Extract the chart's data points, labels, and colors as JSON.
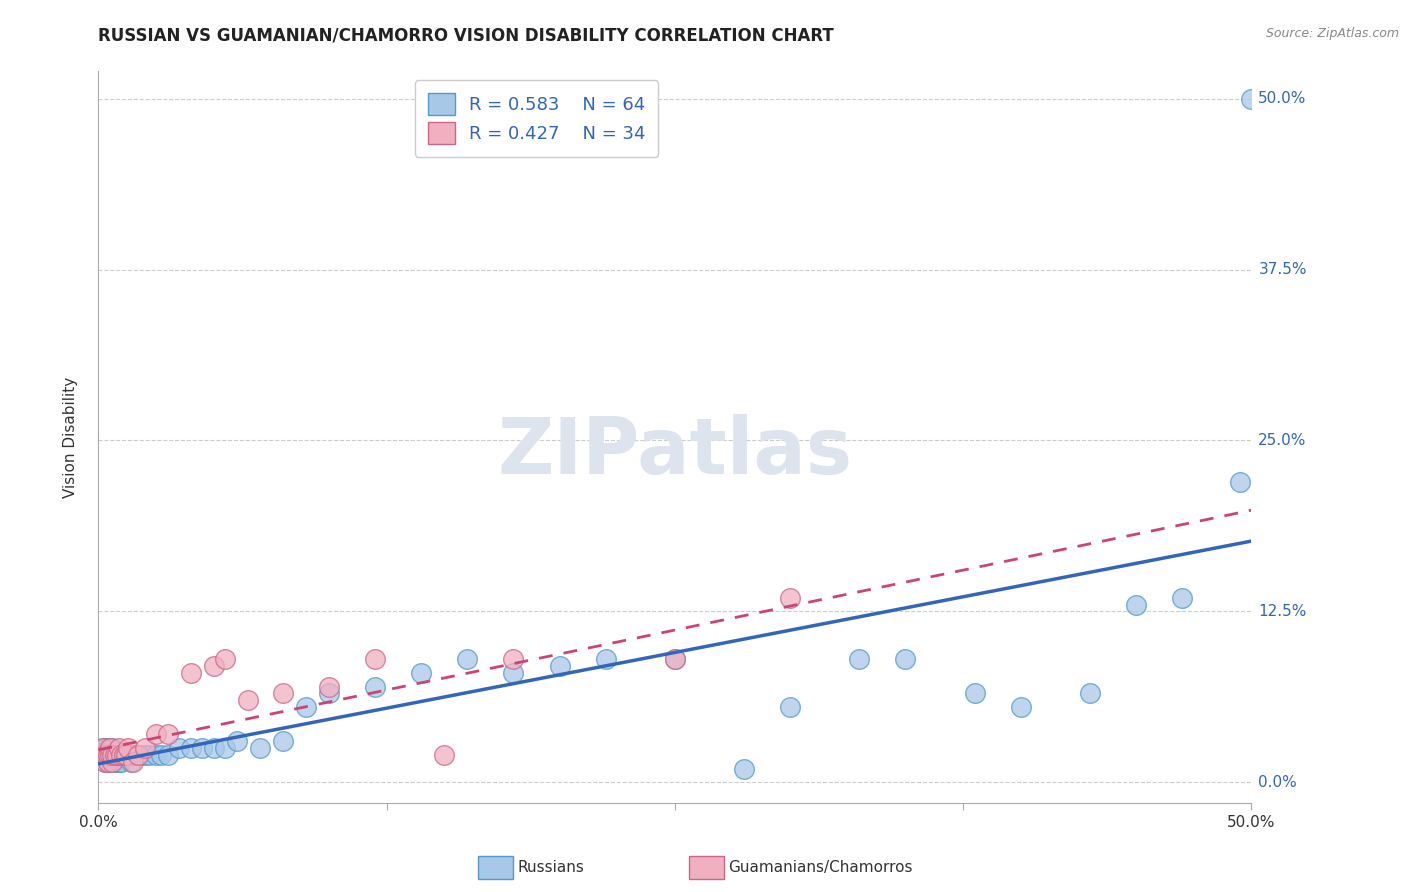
{
  "title": "RUSSIAN VS GUAMANIAN/CHAMORRO VISION DISABILITY CORRELATION CHART",
  "source": "Source: ZipAtlas.com",
  "ylabel": "Vision Disability",
  "ytick_labels": [
    "0.0%",
    "12.5%",
    "25.0%",
    "37.5%",
    "50.0%"
  ],
  "ytick_values": [
    0.0,
    0.125,
    0.25,
    0.375,
    0.5
  ],
  "xlim": [
    0.0,
    0.5
  ],
  "ylim": [
    -0.01,
    0.52
  ],
  "legend_r1": "R = 0.583",
  "legend_n1": "N = 64",
  "legend_r2": "R = 0.427",
  "legend_n2": "N = 34",
  "blue_fill": "#a8c8e8",
  "blue_edge": "#5599cc",
  "pink_fill": "#f0b0c0",
  "pink_edge": "#cc6688",
  "blue_line": "#3366bb",
  "pink_line": "#cc4477",
  "watermark_color": "#d8dde8",
  "russians_x": [
    0.001,
    0.002,
    0.002,
    0.003,
    0.003,
    0.003,
    0.004,
    0.004,
    0.004,
    0.005,
    0.005,
    0.005,
    0.006,
    0.006,
    0.006,
    0.007,
    0.007,
    0.008,
    0.008,
    0.009,
    0.009,
    0.01,
    0.01,
    0.011,
    0.012,
    0.013,
    0.014,
    0.015,
    0.016,
    0.017,
    0.018,
    0.02,
    0.022,
    0.025,
    0.027,
    0.03,
    0.035,
    0.04,
    0.045,
    0.05,
    0.055,
    0.06,
    0.07,
    0.08,
    0.09,
    0.1,
    0.12,
    0.14,
    0.16,
    0.18,
    0.2,
    0.22,
    0.25,
    0.28,
    0.3,
    0.33,
    0.35,
    0.38,
    0.4,
    0.43,
    0.45,
    0.47,
    0.495,
    0.5
  ],
  "russians_y": [
    0.02,
    0.02,
    0.025,
    0.015,
    0.02,
    0.025,
    0.015,
    0.02,
    0.025,
    0.015,
    0.02,
    0.025,
    0.015,
    0.02,
    0.025,
    0.015,
    0.02,
    0.015,
    0.02,
    0.015,
    0.02,
    0.015,
    0.02,
    0.02,
    0.02,
    0.02,
    0.015,
    0.02,
    0.02,
    0.02,
    0.02,
    0.02,
    0.02,
    0.02,
    0.02,
    0.02,
    0.025,
    0.025,
    0.025,
    0.025,
    0.025,
    0.03,
    0.025,
    0.03,
    0.055,
    0.065,
    0.07,
    0.08,
    0.09,
    0.08,
    0.085,
    0.09,
    0.09,
    0.01,
    0.055,
    0.09,
    0.09,
    0.065,
    0.055,
    0.065,
    0.13,
    0.135,
    0.22,
    0.5
  ],
  "guamanians_x": [
    0.001,
    0.002,
    0.002,
    0.003,
    0.003,
    0.004,
    0.004,
    0.005,
    0.005,
    0.006,
    0.006,
    0.007,
    0.008,
    0.009,
    0.01,
    0.011,
    0.012,
    0.013,
    0.015,
    0.017,
    0.02,
    0.025,
    0.03,
    0.04,
    0.05,
    0.055,
    0.065,
    0.08,
    0.1,
    0.12,
    0.15,
    0.18,
    0.25,
    0.3
  ],
  "guamanians_y": [
    0.02,
    0.02,
    0.025,
    0.015,
    0.02,
    0.015,
    0.02,
    0.02,
    0.025,
    0.015,
    0.02,
    0.02,
    0.02,
    0.025,
    0.02,
    0.02,
    0.02,
    0.025,
    0.015,
    0.02,
    0.025,
    0.035,
    0.035,
    0.08,
    0.085,
    0.09,
    0.06,
    0.065,
    0.07,
    0.09,
    0.02,
    0.09,
    0.09,
    0.135
  ]
}
